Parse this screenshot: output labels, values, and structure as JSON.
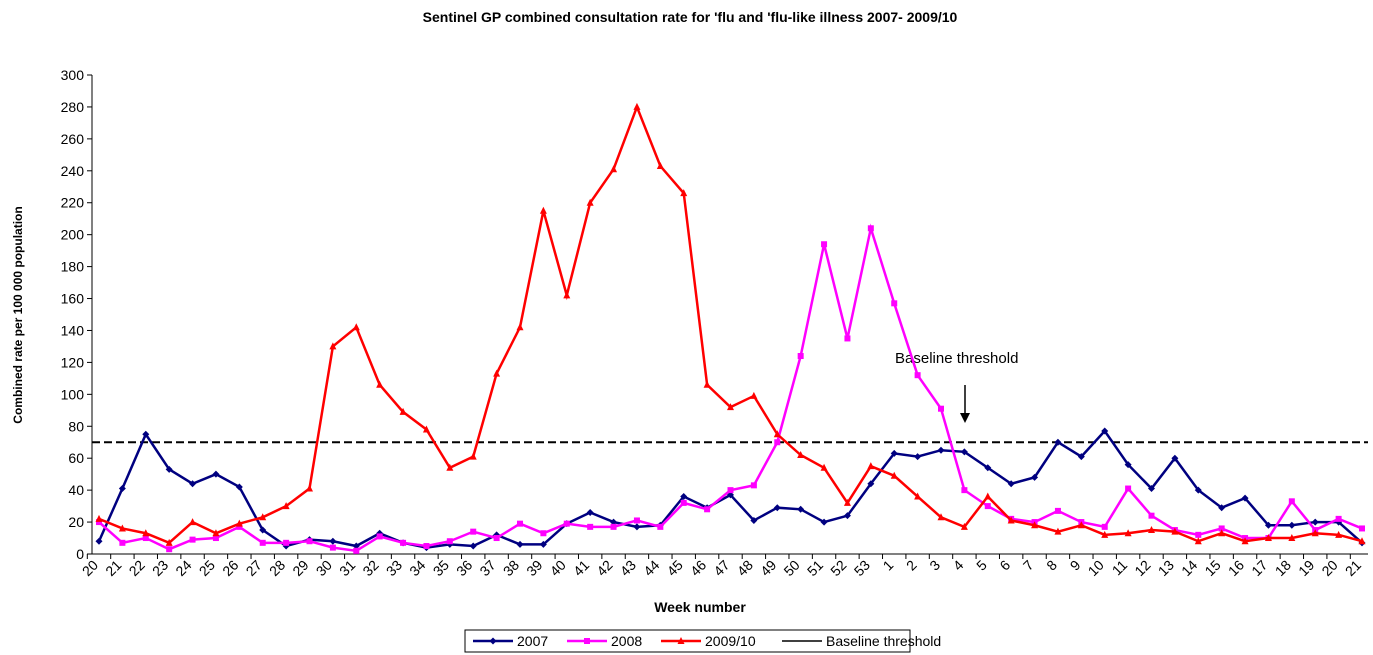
{
  "chart_data": {
    "type": "line",
    "title": "Sentinel GP combined consultation rate for 'flu and 'flu-like illness 2007- 2009/10",
    "x_label": "Week number",
    "y_label": "Combined rate per 100 000 population",
    "categories": [
      "20",
      "21",
      "22",
      "23",
      "24",
      "25",
      "26",
      "27",
      "28",
      "29",
      "30",
      "31",
      "32",
      "33",
      "34",
      "35",
      "36",
      "37",
      "38",
      "39",
      "40",
      "41",
      "42",
      "43",
      "44",
      "45",
      "46",
      "47",
      "48",
      "49",
      "50",
      "51",
      "52",
      "53",
      "1",
      "2",
      "3",
      "4",
      "5",
      "6",
      "7",
      "8",
      "9",
      "10",
      "11",
      "12",
      "13",
      "14",
      "15",
      "16",
      "17",
      "18",
      "19",
      "20",
      "21"
    ],
    "series": [
      {
        "name": "2007",
        "color": "#000080",
        "marker": "diamond",
        "values": [
          8,
          41,
          75,
          53,
          44,
          50,
          42,
          15,
          5,
          9,
          8,
          5,
          13,
          7,
          4,
          6,
          5,
          12,
          6,
          6,
          19,
          26,
          20,
          17,
          18,
          36,
          29,
          37,
          21,
          29,
          28,
          20,
          24,
          44,
          63,
          61,
          65,
          64,
          54,
          44,
          48,
          70,
          61,
          77,
          56,
          41,
          60,
          40,
          29,
          35,
          18,
          18,
          20,
          20,
          7
        ]
      },
      {
        "name": "2008",
        "color": "#ff00ff",
        "marker": "square",
        "values": [
          20,
          7,
          10,
          3,
          9,
          10,
          17,
          7,
          7,
          8,
          4,
          2,
          11,
          7,
          5,
          8,
          14,
          10,
          19,
          13,
          19,
          17,
          17,
          21,
          17,
          32,
          28,
          40,
          43,
          70,
          124,
          194,
          135,
          204,
          157,
          112,
          91,
          40,
          30,
          22,
          20,
          27,
          20,
          17,
          41,
          24,
          15,
          12,
          16,
          10,
          10,
          33,
          15,
          22,
          16
        ]
      },
      {
        "name": "2009/10",
        "color": "#ff0000",
        "marker": "triangle",
        "values": [
          22,
          16,
          13,
          7,
          20,
          13,
          19,
          23,
          30,
          41,
          130,
          142,
          106,
          89,
          78,
          54,
          61,
          113,
          142,
          215,
          162,
          220,
          241,
          280,
          243,
          226,
          106,
          92,
          99,
          75,
          62,
          54,
          32,
          55,
          49,
          36,
          23,
          17,
          36,
          21,
          18,
          14,
          18,
          12,
          13,
          15,
          14,
          8,
          13,
          8,
          10,
          10,
          13,
          12,
          8
        ]
      }
    ],
    "threshold": {
      "name": "Baseline threshold",
      "value": 70,
      "color": "#000000"
    },
    "annotation": "Baseline threshold",
    "ylim": [
      0,
      300
    ],
    "yticks": [
      0,
      20,
      40,
      60,
      80,
      100,
      120,
      140,
      160,
      180,
      200,
      220,
      240,
      260,
      280,
      300
    ],
    "legend": "bottom"
  }
}
